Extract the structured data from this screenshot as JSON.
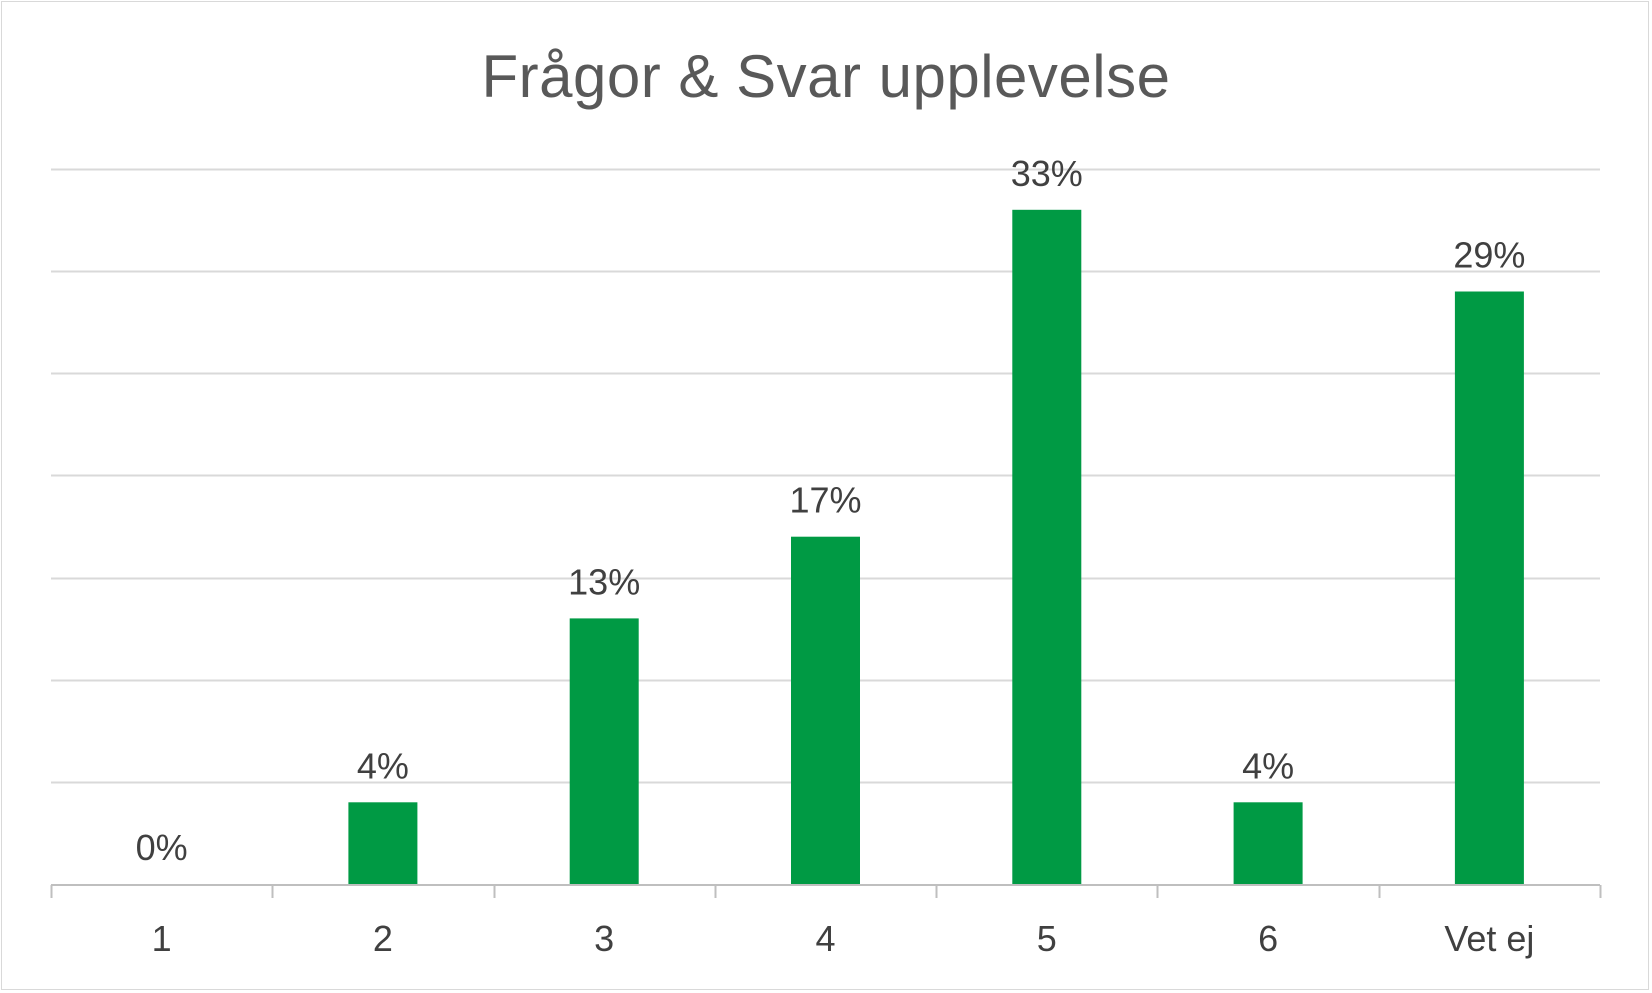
{
  "chart_data": {
    "type": "bar",
    "title": "Frågor &  Svar upplevelse",
    "categories": [
      "1",
      "2",
      "3",
      "4",
      "5",
      "6",
      "Vet ej"
    ],
    "values": [
      0,
      4,
      13,
      17,
      33,
      4,
      29
    ],
    "data_labels": [
      "0%",
      "4%",
      "13%",
      "17%",
      "33%",
      "4%",
      "29%"
    ],
    "unit": "%",
    "xlabel": "",
    "ylabel": "",
    "ylim": [
      0,
      35
    ],
    "gridline_step": 5,
    "grid": true,
    "y_axis_labels_visible": false,
    "legend": "none",
    "colors": {
      "bar": "#009a44",
      "grid": "#d9d9d9",
      "axis": "#bfbfbf",
      "text": "#404040",
      "title": "#595959"
    }
  }
}
